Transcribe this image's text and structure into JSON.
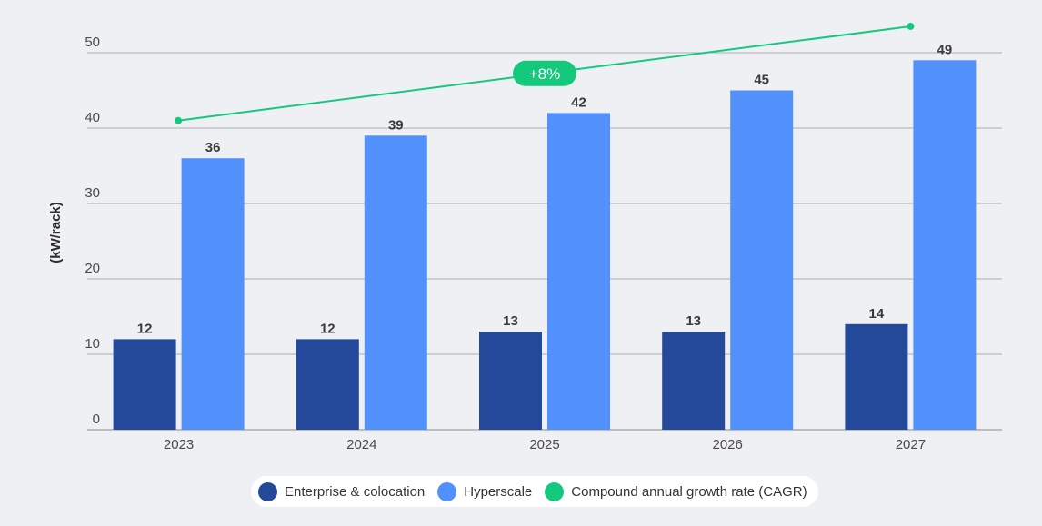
{
  "chart_data": {
    "type": "bar",
    "categories": [
      "2023",
      "2024",
      "2025",
      "2026",
      "2027"
    ],
    "series": [
      {
        "name": "Enterprise & colocation",
        "values": [
          12,
          12,
          13,
          13,
          14
        ],
        "color": "#24489a"
      },
      {
        "name": "Hyperscale",
        "values": [
          36,
          39,
          42,
          45,
          49
        ],
        "color": "#5291fb"
      }
    ],
    "cagr": {
      "name": "Compound annual growth rate (CAGR)",
      "label": "+8%",
      "start": 41,
      "end": 53.5,
      "color": "#14c97c"
    },
    "ylabel": "(kW/rack)",
    "yticks": [
      0,
      10,
      20,
      30,
      40,
      50
    ],
    "ylim": [
      0,
      50
    ],
    "grid": true,
    "legend": "bottom-center"
  }
}
